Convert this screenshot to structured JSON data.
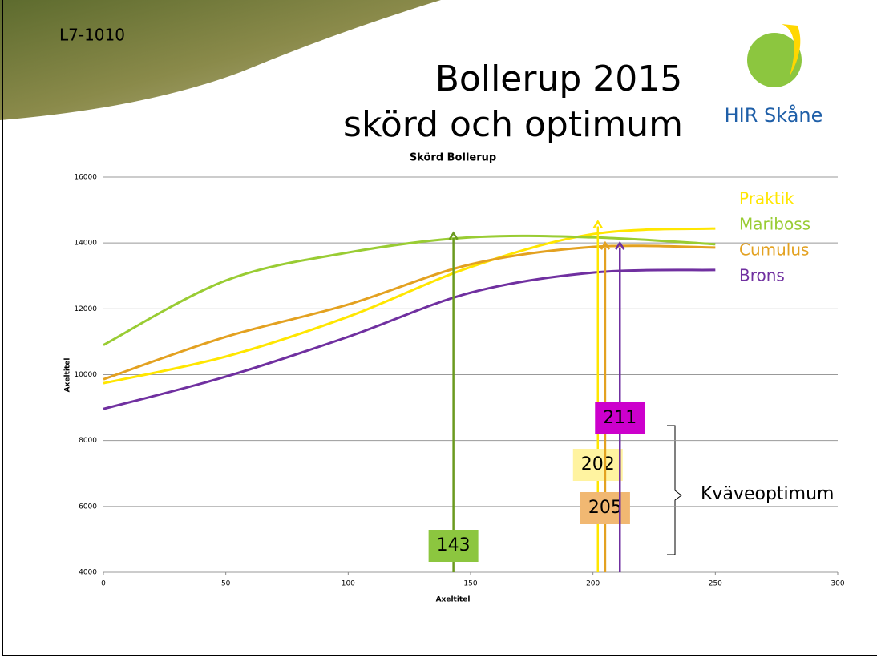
{
  "slide_label": "L7-1010",
  "title_lines": [
    "Bollerup 2015",
    "skörd och optimum"
  ],
  "logo_text": "HIR Skåne",
  "chart_data": {
    "type": "line",
    "title": "Skörd Bollerup",
    "x_label": "Axeltitel",
    "y_label": "Axeltitel",
    "x": [
      0,
      50,
      100,
      150,
      200,
      250
    ],
    "series": [
      {
        "name": "Praktik",
        "color": "#ffe600",
        "values": [
          9740,
          10550,
          11760,
          13270,
          14270,
          14440
        ]
      },
      {
        "name": "Mariboss",
        "color": "#99cc33",
        "values": [
          10900,
          12860,
          13710,
          14170,
          14170,
          13960
        ]
      },
      {
        "name": "Cumulus",
        "color": "#e3a120",
        "values": [
          9860,
          11150,
          12130,
          13350,
          13880,
          13860
        ]
      },
      {
        "name": "Brons",
        "color": "#7030a0",
        "values": [
          8960,
          9940,
          11150,
          12490,
          13100,
          13180
        ]
      }
    ],
    "xlim": [
      0,
      300
    ],
    "xticks": [
      0,
      50,
      100,
      150,
      200,
      250,
      300
    ],
    "ylim": [
      4000,
      16000
    ],
    "yticks": [
      4000,
      6000,
      8000,
      10000,
      12000,
      14000,
      16000
    ],
    "grid": true,
    "optima": [
      {
        "value": 143,
        "top": 14300,
        "color": "#6b9a1f",
        "box": "#8cc63f"
      },
      {
        "value": 202,
        "top": 14650,
        "color": "#ffe600",
        "box": "#fff3a0"
      },
      {
        "value": 205,
        "top": 14000,
        "color": "#e3a120",
        "box": "#f1b872"
      },
      {
        "value": 211,
        "top": 14000,
        "color": "#7030a0",
        "box": "#cc00cc"
      }
    ],
    "optimum_label": "Kväveoptimum"
  }
}
